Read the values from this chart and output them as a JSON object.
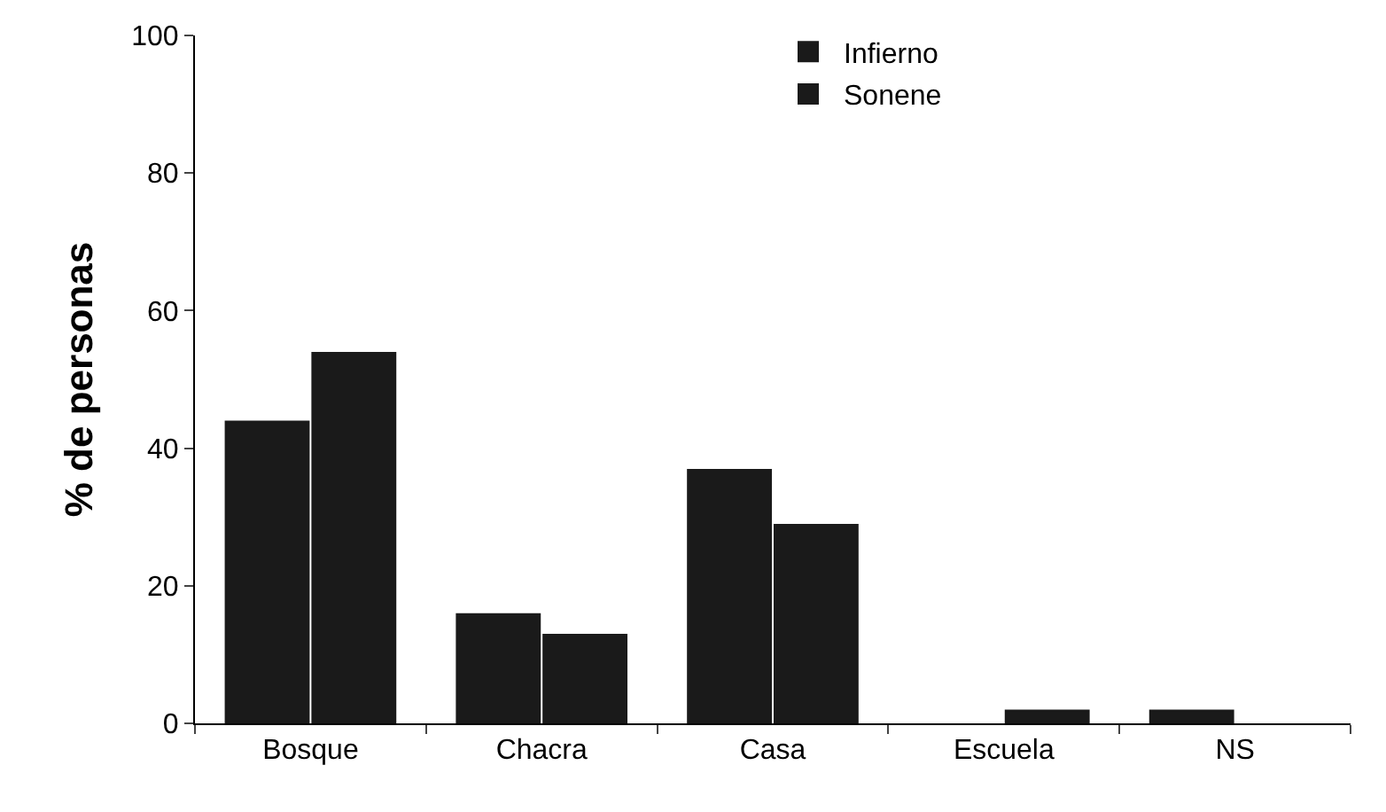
{
  "chart_data": {
    "type": "bar",
    "ylabel": "% de personas",
    "categories": [
      "Bosque",
      "Chacra",
      "Casa",
      "Escuela",
      "NS"
    ],
    "series": [
      {
        "name": "Infierno",
        "color": "#1a1a1a",
        "values": [
          44,
          16,
          37,
          0,
          2
        ]
      },
      {
        "name": "Sonene",
        "color": "#1a1a1a",
        "values": [
          54,
          13,
          29,
          2,
          0
        ]
      }
    ],
    "ylim": [
      0,
      100
    ],
    "yticks": [
      0,
      20,
      40,
      60,
      80,
      100
    ],
    "legend": "top"
  }
}
